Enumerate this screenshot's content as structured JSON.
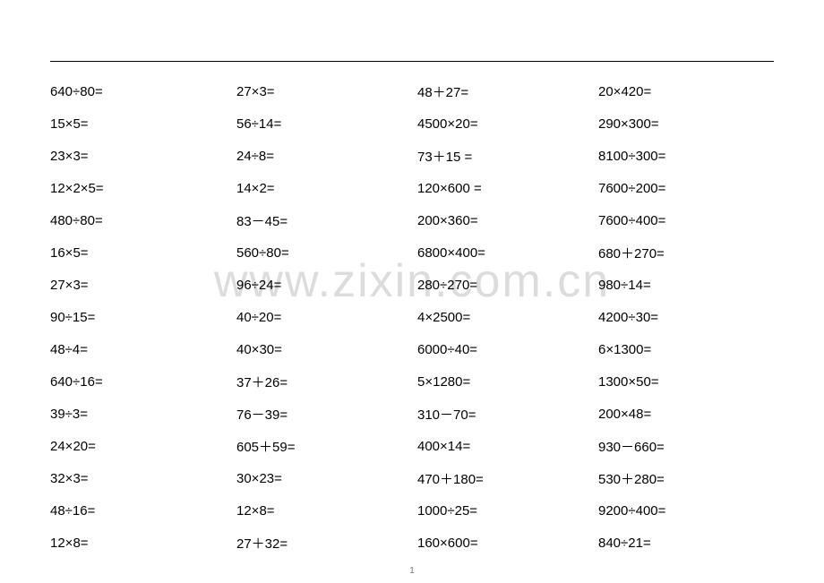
{
  "watermark": "www.zixin.com.cn",
  "page_number": "1",
  "math": {
    "rows": [
      [
        "640÷80=",
        "27×3=",
        "48＋27=",
        "20×420="
      ],
      [
        "15×5=",
        "56÷14=",
        "4500×20=",
        "290×300="
      ],
      [
        "23×3=",
        "24÷8=",
        "73＋15 =",
        "8100÷300="
      ],
      [
        "12×2×5=",
        "14×2=",
        "120×600 =",
        "7600÷200="
      ],
      [
        "480÷80=",
        "83－45=",
        "200×360=",
        "7600÷400="
      ],
      [
        "16×5=",
        "560÷80=",
        "6800×400=",
        "680＋270="
      ],
      [
        "27×3=",
        "96÷24=",
        "280÷270=",
        "980÷14="
      ],
      [
        "90÷15=",
        "40÷20=",
        "4×2500=",
        "4200÷30="
      ],
      [
        "48÷4=",
        "40×30=",
        "6000÷40=",
        "6×1300="
      ],
      [
        "640÷16=",
        "37＋26=",
        "5×1280=",
        "1300×50="
      ],
      [
        "39÷3=",
        "76－39=",
        "310－70=",
        "200×48="
      ],
      [
        "24×20=",
        "605＋59=",
        "400×14=",
        "930－660="
      ],
      [
        "32×3=",
        "30×23=",
        "470＋180=",
        "530＋280="
      ],
      [
        "48÷16=",
        "12×8=",
        "1000÷25=",
        "9200÷400="
      ],
      [
        "12×8=",
        "27＋32=",
        "160×600=",
        "840÷21="
      ]
    ]
  }
}
